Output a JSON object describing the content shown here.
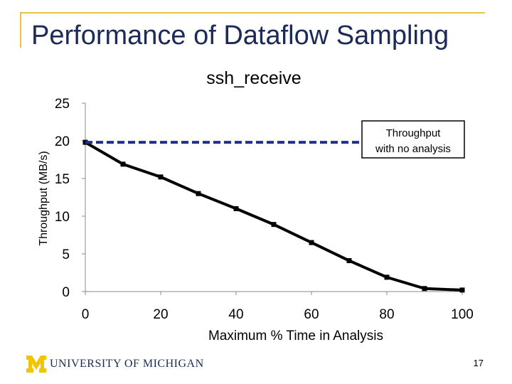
{
  "slide": {
    "title": "Performance of Dataflow Sampling",
    "footer_org": "UNIVERSITY OF MICHIGAN",
    "page_number": "17"
  },
  "colors": {
    "frame": "#E8C547",
    "title": "#1B2A56",
    "baseline": "#1F2F8F",
    "series": "#000000",
    "logo": "#F2C500"
  },
  "chart_data": {
    "type": "line",
    "title": "ssh_receive",
    "xlabel": "Maximum % Time in Analysis",
    "ylabel": "Throughput (MB/s)",
    "xlim": [
      0,
      100
    ],
    "ylim": [
      0,
      25
    ],
    "xticks": [
      0,
      20,
      40,
      60,
      80,
      100
    ],
    "yticks": [
      0,
      5,
      10,
      15,
      20,
      25
    ],
    "grid": false,
    "series": [
      {
        "x": [
          0,
          10,
          20,
          30,
          40,
          50,
          60,
          70,
          80,
          90,
          100
        ],
        "y": [
          19.8,
          16.9,
          15.2,
          13.0,
          11.0,
          8.9,
          6.5,
          4.1,
          1.9,
          0.4,
          0.2
        ],
        "style": "solid",
        "color": "#000000"
      },
      {
        "x": [
          0,
          100
        ],
        "y": [
          19.8,
          19.8
        ],
        "style": "dashed",
        "color": "#1F2F8F"
      }
    ],
    "annotation": "Throughput with no analysis",
    "annotation_lines": [
      "Throughput",
      "with no analysis"
    ]
  }
}
